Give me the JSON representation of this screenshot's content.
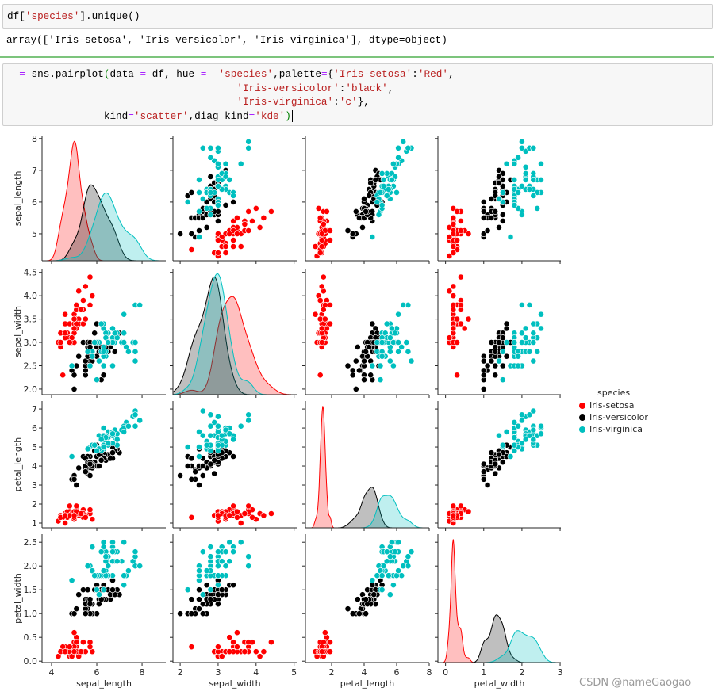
{
  "notebook": {
    "cell1": {
      "tokens": [
        [
          {
            "t": "df[",
            "c": ""
          },
          {
            "t": "'species'",
            "c": "t-str"
          },
          {
            "t": "].unique()",
            "c": ""
          }
        ]
      ]
    },
    "output1": "array(['Iris-setosa', 'Iris-versicolor', 'Iris-virginica'], dtype=object)",
    "cell2": {
      "tokens": [
        [
          {
            "t": "_ ",
            "c": ""
          },
          {
            "t": "=",
            "c": "t-op"
          },
          {
            "t": " sns.pairplot",
            "c": ""
          },
          {
            "t": "(",
            "c": "t-par"
          },
          {
            "t": "data ",
            "c": ""
          },
          {
            "t": "=",
            "c": "t-op"
          },
          {
            "t": " df, hue ",
            "c": ""
          },
          {
            "t": "=",
            "c": "t-op"
          },
          {
            "t": "  ",
            "c": ""
          },
          {
            "t": "'species'",
            "c": "t-str"
          },
          {
            "t": ",palette",
            "c": ""
          },
          {
            "t": "=",
            "c": "t-op"
          },
          {
            "t": "{",
            "c": ""
          },
          {
            "t": "'Iris-setosa'",
            "c": "t-str"
          },
          {
            "t": ":",
            "c": ""
          },
          {
            "t": "'Red'",
            "c": "t-str"
          },
          {
            "t": ",",
            "c": ""
          }
        ],
        [
          {
            "t": "                                      ",
            "c": ""
          },
          {
            "t": "'Iris-versicolor'",
            "c": "t-str"
          },
          {
            "t": ":",
            "c": ""
          },
          {
            "t": "'black'",
            "c": "t-str"
          },
          {
            "t": ",",
            "c": ""
          }
        ],
        [
          {
            "t": "                                      ",
            "c": ""
          },
          {
            "t": "'Iris-virginica'",
            "c": "t-str"
          },
          {
            "t": ":",
            "c": ""
          },
          {
            "t": "'c'",
            "c": "t-str"
          },
          {
            "t": "},",
            "c": ""
          }
        ],
        [
          {
            "t": "                ",
            "c": ""
          },
          {
            "t": "kind",
            "c": ""
          },
          {
            "t": "=",
            "c": "t-op"
          },
          {
            "t": "'scatter'",
            "c": "t-str"
          },
          {
            "t": ",diag_kind",
            "c": ""
          },
          {
            "t": "=",
            "c": "t-op"
          },
          {
            "t": "'kde'",
            "c": "t-str"
          },
          {
            "t": ")",
            "c": "t-par"
          }
        ]
      ]
    }
  },
  "watermark": "CSDN @nameGaogao",
  "chart_data": {
    "type": "scatter",
    "kind": "pairplot",
    "diag_kind": "kde",
    "variables": [
      "sepal_length",
      "sepal_width",
      "petal_length",
      "petal_width"
    ],
    "axis_ranges": {
      "x": {
        "sepal_length": [
          3.58,
          9.05
        ],
        "sepal_width": [
          1.81,
          5.07
        ],
        "petal_length": [
          0.39,
          8.0
        ],
        "petal_width": [
          -0.2,
          3.02
        ]
      },
      "y": {
        "sepal_length": [
          4.15,
          8.07
        ],
        "sepal_width": [
          1.88,
          4.58
        ],
        "petal_length": [
          0.75,
          7.42
        ],
        "petal_width": [
          -0.03,
          2.67
        ]
      }
    },
    "ticks": {
      "x": {
        "sepal_length": [
          "4",
          "6",
          "8"
        ],
        "sepal_width": [
          "2",
          "3",
          "4",
          "5"
        ],
        "petal_length": [
          "2",
          "4",
          "6",
          "8"
        ],
        "petal_width": [
          "0",
          "1",
          "2",
          "3"
        ]
      },
      "y": {
        "sepal_length": [
          "5",
          "6",
          "7",
          "8"
        ],
        "sepal_width": [
          "2.0",
          "2.5",
          "3.0",
          "3.5",
          "4.0",
          "4.5"
        ],
        "petal_length": [
          "1",
          "2",
          "3",
          "4",
          "5",
          "6",
          "7"
        ],
        "petal_width": [
          "0.0",
          "0.5",
          "1.0",
          "1.5",
          "2.0",
          "2.5"
        ]
      }
    },
    "grid": false,
    "legend": {
      "title": "species",
      "placement": "right"
    },
    "series": [
      {
        "name": "Iris-setosa",
        "color": "#ff0000",
        "points": [
          [
            5.1,
            3.5,
            1.4,
            0.2
          ],
          [
            4.9,
            3.0,
            1.4,
            0.2
          ],
          [
            4.7,
            3.2,
            1.3,
            0.2
          ],
          [
            4.6,
            3.1,
            1.5,
            0.2
          ],
          [
            5.0,
            3.6,
            1.4,
            0.2
          ],
          [
            5.4,
            3.9,
            1.7,
            0.4
          ],
          [
            4.6,
            3.4,
            1.4,
            0.3
          ],
          [
            5.0,
            3.4,
            1.5,
            0.2
          ],
          [
            4.4,
            2.9,
            1.4,
            0.2
          ],
          [
            4.9,
            3.1,
            1.5,
            0.1
          ],
          [
            5.4,
            3.7,
            1.5,
            0.2
          ],
          [
            4.8,
            3.4,
            1.6,
            0.2
          ],
          [
            4.8,
            3.0,
            1.4,
            0.1
          ],
          [
            4.3,
            3.0,
            1.1,
            0.1
          ],
          [
            5.8,
            4.0,
            1.2,
            0.2
          ],
          [
            5.7,
            4.4,
            1.5,
            0.4
          ],
          [
            5.4,
            3.9,
            1.3,
            0.4
          ],
          [
            5.1,
            3.5,
            1.4,
            0.3
          ],
          [
            5.7,
            3.8,
            1.7,
            0.3
          ],
          [
            5.1,
            3.8,
            1.5,
            0.3
          ],
          [
            5.4,
            3.4,
            1.7,
            0.2
          ],
          [
            5.1,
            3.7,
            1.5,
            0.4
          ],
          [
            4.6,
            3.6,
            1.0,
            0.2
          ],
          [
            5.1,
            3.3,
            1.7,
            0.5
          ],
          [
            4.8,
            3.4,
            1.9,
            0.2
          ],
          [
            5.0,
            3.0,
            1.6,
            0.2
          ],
          [
            5.0,
            3.4,
            1.6,
            0.4
          ],
          [
            5.2,
            3.5,
            1.5,
            0.2
          ],
          [
            5.2,
            3.4,
            1.4,
            0.2
          ],
          [
            4.7,
            3.2,
            1.6,
            0.2
          ],
          [
            4.8,
            3.1,
            1.6,
            0.2
          ],
          [
            5.4,
            3.4,
            1.5,
            0.4
          ],
          [
            5.2,
            4.1,
            1.5,
            0.1
          ],
          [
            5.5,
            4.2,
            1.4,
            0.2
          ],
          [
            4.9,
            3.1,
            1.5,
            0.1
          ],
          [
            5.0,
            3.2,
            1.2,
            0.2
          ],
          [
            5.5,
            3.5,
            1.3,
            0.2
          ],
          [
            4.9,
            3.1,
            1.5,
            0.1
          ],
          [
            4.4,
            3.0,
            1.3,
            0.2
          ],
          [
            5.1,
            3.4,
            1.5,
            0.2
          ],
          [
            5.0,
            3.5,
            1.3,
            0.3
          ],
          [
            4.5,
            2.3,
            1.3,
            0.3
          ],
          [
            4.4,
            3.2,
            1.3,
            0.2
          ],
          [
            5.0,
            3.5,
            1.6,
            0.6
          ],
          [
            5.1,
            3.8,
            1.9,
            0.4
          ],
          [
            4.8,
            3.0,
            1.4,
            0.3
          ],
          [
            5.1,
            3.8,
            1.6,
            0.2
          ],
          [
            4.6,
            3.2,
            1.4,
            0.2
          ],
          [
            5.3,
            3.7,
            1.5,
            0.2
          ],
          [
            5.0,
            3.3,
            1.4,
            0.2
          ]
        ]
      },
      {
        "name": "Iris-versicolor",
        "color": "#000000",
        "points": [
          [
            7.0,
            3.2,
            4.7,
            1.4
          ],
          [
            6.4,
            3.2,
            4.5,
            1.5
          ],
          [
            6.9,
            3.1,
            4.9,
            1.5
          ],
          [
            5.5,
            2.3,
            4.0,
            1.3
          ],
          [
            6.5,
            2.8,
            4.6,
            1.5
          ],
          [
            5.7,
            2.8,
            4.5,
            1.3
          ],
          [
            6.3,
            3.3,
            4.7,
            1.6
          ],
          [
            4.9,
            2.4,
            3.3,
            1.0
          ],
          [
            6.6,
            2.9,
            4.6,
            1.3
          ],
          [
            5.2,
            2.7,
            3.9,
            1.4
          ],
          [
            5.0,
            2.0,
            3.5,
            1.0
          ],
          [
            5.9,
            3.0,
            4.2,
            1.5
          ],
          [
            6.0,
            2.2,
            4.0,
            1.0
          ],
          [
            6.1,
            2.9,
            4.7,
            1.4
          ],
          [
            5.6,
            2.9,
            3.6,
            1.3
          ],
          [
            6.7,
            3.1,
            4.4,
            1.4
          ],
          [
            5.6,
            3.0,
            4.5,
            1.5
          ],
          [
            5.8,
            2.7,
            4.1,
            1.0
          ],
          [
            6.2,
            2.2,
            4.5,
            1.5
          ],
          [
            5.6,
            2.5,
            3.9,
            1.1
          ],
          [
            5.9,
            3.2,
            4.8,
            1.8
          ],
          [
            6.1,
            2.8,
            4.0,
            1.3
          ],
          [
            6.3,
            2.5,
            4.9,
            1.5
          ],
          [
            6.1,
            2.8,
            4.7,
            1.2
          ],
          [
            6.4,
            2.9,
            4.3,
            1.3
          ],
          [
            6.6,
            3.0,
            4.4,
            1.4
          ],
          [
            6.8,
            2.8,
            4.8,
            1.4
          ],
          [
            6.7,
            3.0,
            5.0,
            1.7
          ],
          [
            6.0,
            2.9,
            4.5,
            1.5
          ],
          [
            5.7,
            2.6,
            3.5,
            1.0
          ],
          [
            5.5,
            2.4,
            3.8,
            1.1
          ],
          [
            5.5,
            2.4,
            3.7,
            1.0
          ],
          [
            5.8,
            2.7,
            3.9,
            1.2
          ],
          [
            6.0,
            2.7,
            5.1,
            1.6
          ],
          [
            5.4,
            3.0,
            4.5,
            1.5
          ],
          [
            6.0,
            3.4,
            4.5,
            1.6
          ],
          [
            6.7,
            3.1,
            4.7,
            1.5
          ],
          [
            6.3,
            2.3,
            4.4,
            1.3
          ],
          [
            5.6,
            3.0,
            4.1,
            1.3
          ],
          [
            5.5,
            2.5,
            4.0,
            1.3
          ],
          [
            5.5,
            2.6,
            4.4,
            1.2
          ],
          [
            6.1,
            3.0,
            4.6,
            1.4
          ],
          [
            5.8,
            2.6,
            4.0,
            1.2
          ],
          [
            5.0,
            2.3,
            3.3,
            1.0
          ],
          [
            5.6,
            2.7,
            4.2,
            1.3
          ],
          [
            5.7,
            3.0,
            4.2,
            1.2
          ],
          [
            5.7,
            2.9,
            4.2,
            1.3
          ],
          [
            6.2,
            2.9,
            4.3,
            1.3
          ],
          [
            5.1,
            2.5,
            3.0,
            1.1
          ],
          [
            5.7,
            2.8,
            4.1,
            1.3
          ]
        ]
      },
      {
        "name": "Iris-virginica",
        "color": "#00bfbf",
        "points": [
          [
            6.3,
            3.3,
            6.0,
            2.5
          ],
          [
            5.8,
            2.7,
            5.1,
            1.9
          ],
          [
            7.1,
            3.0,
            5.9,
            2.1
          ],
          [
            6.3,
            2.9,
            5.6,
            1.8
          ],
          [
            6.5,
            3.0,
            5.8,
            2.2
          ],
          [
            7.6,
            3.0,
            6.6,
            2.1
          ],
          [
            4.9,
            2.5,
            4.5,
            1.7
          ],
          [
            7.3,
            2.9,
            6.3,
            1.8
          ],
          [
            6.7,
            2.5,
            5.8,
            1.8
          ],
          [
            7.2,
            3.6,
            6.1,
            2.5
          ],
          [
            6.5,
            3.2,
            5.1,
            2.0
          ],
          [
            6.4,
            2.7,
            5.3,
            1.9
          ],
          [
            6.8,
            3.0,
            5.5,
            2.1
          ],
          [
            5.7,
            2.5,
            5.0,
            2.0
          ],
          [
            5.8,
            2.8,
            5.1,
            2.4
          ],
          [
            6.4,
            3.2,
            5.3,
            2.3
          ],
          [
            6.5,
            3.0,
            5.5,
            1.8
          ],
          [
            7.7,
            3.8,
            6.7,
            2.2
          ],
          [
            7.7,
            2.6,
            6.9,
            2.3
          ],
          [
            6.0,
            2.2,
            5.0,
            1.5
          ],
          [
            6.9,
            3.2,
            5.7,
            2.3
          ],
          [
            5.6,
            2.8,
            4.9,
            2.0
          ],
          [
            7.7,
            2.8,
            6.7,
            2.0
          ],
          [
            6.3,
            2.7,
            4.9,
            1.8
          ],
          [
            6.7,
            3.3,
            5.7,
            2.1
          ],
          [
            7.2,
            3.2,
            6.0,
            1.8
          ],
          [
            6.2,
            2.8,
            4.8,
            1.8
          ],
          [
            6.1,
            3.0,
            4.9,
            1.8
          ],
          [
            6.4,
            2.8,
            5.6,
            2.1
          ],
          [
            7.2,
            3.0,
            5.8,
            1.6
          ],
          [
            7.4,
            2.8,
            6.1,
            1.9
          ],
          [
            7.9,
            3.8,
            6.4,
            2.0
          ],
          [
            6.4,
            2.8,
            5.6,
            2.2
          ],
          [
            6.3,
            2.8,
            5.1,
            1.5
          ],
          [
            6.1,
            2.6,
            5.6,
            1.4
          ],
          [
            7.7,
            3.0,
            6.1,
            2.3
          ],
          [
            6.3,
            3.4,
            5.6,
            2.4
          ],
          [
            6.4,
            3.1,
            5.5,
            1.8
          ],
          [
            6.0,
            3.0,
            4.8,
            1.8
          ],
          [
            6.9,
            3.1,
            5.4,
            2.1
          ],
          [
            6.7,
            3.1,
            5.6,
            2.4
          ],
          [
            6.9,
            3.1,
            5.1,
            2.3
          ],
          [
            5.8,
            2.7,
            5.1,
            1.9
          ],
          [
            6.8,
            3.2,
            5.9,
            2.3
          ],
          [
            6.7,
            3.3,
            5.7,
            2.5
          ],
          [
            6.7,
            3.0,
            5.2,
            2.3
          ],
          [
            6.3,
            2.5,
            5.0,
            1.9
          ],
          [
            6.5,
            3.0,
            5.2,
            2.0
          ],
          [
            6.2,
            3.4,
            5.4,
            2.3
          ],
          [
            5.9,
            3.0,
            5.1,
            1.8
          ]
        ]
      }
    ]
  }
}
